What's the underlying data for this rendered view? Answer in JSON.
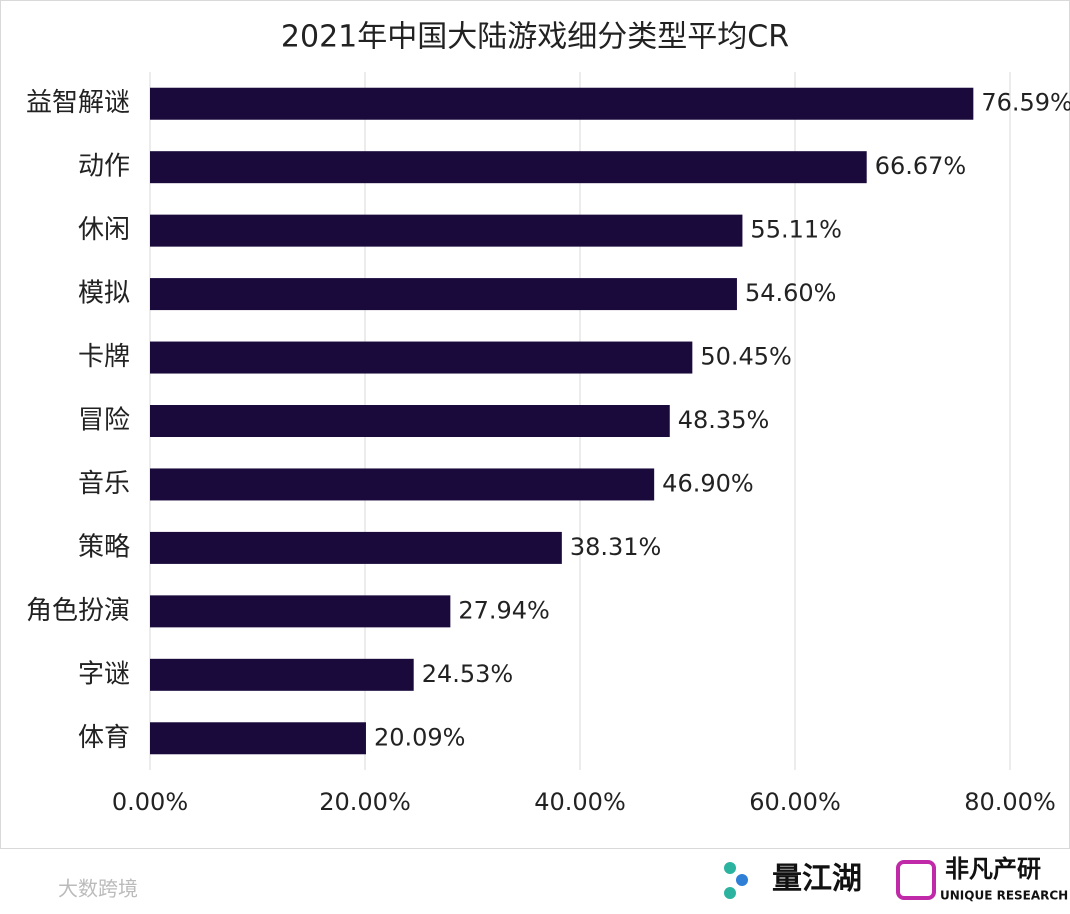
{
  "chart_data": {
    "type": "bar",
    "orientation": "horizontal",
    "title": "2021年中国大陆游戏细分类型平均CR",
    "categories": [
      "益智解谜",
      "动作",
      "休闲",
      "模拟",
      "卡牌",
      "冒险",
      "音乐",
      "策略",
      "角色扮演",
      "字谜",
      "体育"
    ],
    "values": [
      76.59,
      66.67,
      55.11,
      54.6,
      50.45,
      48.35,
      46.9,
      38.31,
      27.94,
      24.53,
      20.09
    ],
    "value_labels": [
      "76.59%",
      "66.67%",
      "55.11%",
      "54.60%",
      "50.45%",
      "48.35%",
      "46.90%",
      "38.31%",
      "27.94%",
      "24.53%",
      "20.09%"
    ],
    "color": "#1a0a3c",
    "xlim": [
      0,
      80
    ],
    "xticks": [
      {
        "value": 0,
        "label": "0.00%"
      },
      {
        "value": 20,
        "label": "20.00%"
      },
      {
        "value": 40,
        "label": "40.00%"
      },
      {
        "value": 60,
        "label": "60.00%"
      },
      {
        "value": 80,
        "label": "80.00%"
      }
    ],
    "grid": true
  },
  "footer": {
    "watermark": "大数跨境",
    "brand1": "量江湖",
    "brand2": "非凡产研",
    "brand2_sub": "UNIQUE RESEARCH"
  }
}
